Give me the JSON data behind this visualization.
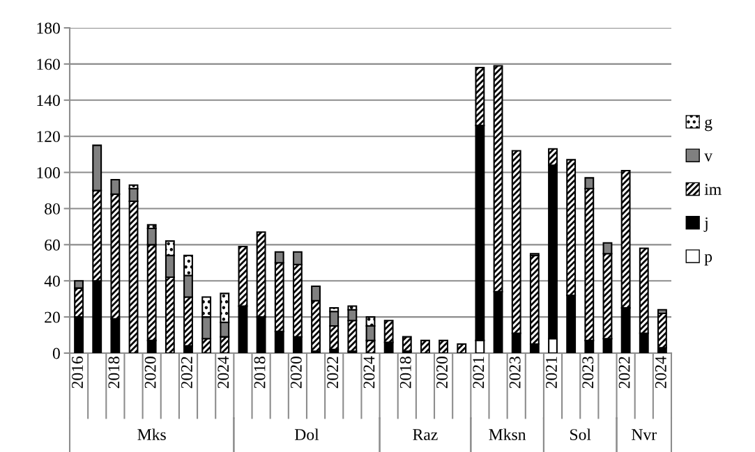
{
  "chart_data": {
    "type": "bar",
    "stacked": true,
    "categories": [
      "2016",
      null,
      "2018",
      null,
      "2020",
      null,
      "2022",
      null,
      "2024",
      null,
      "2018",
      null,
      "2020",
      null,
      "2022",
      null,
      "2024",
      null,
      "2018",
      null,
      "2020",
      null,
      "2021",
      null,
      "2023",
      null,
      "2021",
      null,
      "2023",
      null,
      "2022",
      null,
      "2024"
    ],
    "annotations": [
      "Mks",
      "Dol",
      "Raz",
      "Mksn",
      "Sol",
      "Nvr"
    ],
    "series": [
      {
        "name": "p",
        "color": "#ffffff",
        "values": [
          0,
          0,
          0,
          0,
          0,
          0,
          0,
          0,
          0,
          0,
          0,
          0,
          0,
          0,
          0,
          0,
          0,
          0,
          0,
          0,
          0,
          0,
          7,
          0,
          0,
          0,
          8,
          0,
          0,
          0,
          0,
          0,
          0
        ]
      },
      {
        "name": "j",
        "color": "#000000",
        "values": [
          20,
          40,
          19,
          0,
          7,
          0,
          4,
          0,
          0,
          26,
          20,
          12,
          9,
          1,
          2,
          1,
          0,
          6,
          1,
          0,
          0,
          0,
          119,
          34,
          11,
          5,
          96,
          32,
          7,
          8,
          25,
          11,
          3
        ]
      },
      {
        "name": "im",
        "color": "#000000",
        "values": [
          16,
          50,
          69,
          84,
          53,
          42,
          27,
          8,
          9,
          33,
          47,
          38,
          40,
          28,
          13,
          17,
          7,
          12,
          8,
          7,
          7,
          5,
          32,
          125,
          101,
          49,
          9,
          75,
          84,
          47,
          76,
          47,
          19
        ]
      },
      {
        "name": "v",
        "color": "#808080",
        "values": [
          4,
          25,
          8,
          7,
          9,
          12,
          12,
          12,
          8,
          0,
          0,
          6,
          7,
          8,
          8,
          6,
          8,
          0,
          0,
          0,
          0,
          0,
          0,
          0,
          0,
          1,
          0,
          0,
          6,
          6,
          0,
          0,
          2
        ]
      },
      {
        "name": "g",
        "color": "#000000",
        "values": [
          0,
          0,
          0,
          2,
          2,
          8,
          11,
          11,
          16,
          0,
          0,
          0,
          0,
          0,
          2,
          2,
          5,
          0,
          0,
          0,
          0,
          0,
          0,
          0,
          0,
          0,
          0,
          0,
          0,
          0,
          0,
          0,
          0
        ]
      }
    ],
    "ylim": [
      0,
      180
    ],
    "yticks": [
      0,
      20,
      40,
      60,
      80,
      100,
      120,
      140,
      160,
      180
    ],
    "grid": "y",
    "legend": "right"
  }
}
